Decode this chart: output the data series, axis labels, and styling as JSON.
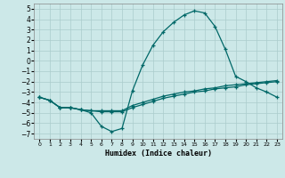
{
  "xlabel": "Humidex (Indice chaleur)",
  "bg_color": "#cce8e8",
  "grid_color": "#aacccc",
  "line_color": "#006868",
  "xlim": [
    -0.5,
    23.5
  ],
  "ylim": [
    -7.5,
    5.5
  ],
  "xticks": [
    0,
    1,
    2,
    3,
    4,
    5,
    6,
    7,
    8,
    9,
    10,
    11,
    12,
    13,
    14,
    15,
    16,
    17,
    18,
    19,
    20,
    21,
    22,
    23
  ],
  "yticks": [
    -7,
    -6,
    -5,
    -4,
    -3,
    -2,
    -1,
    0,
    1,
    2,
    3,
    4,
    5
  ],
  "line1_x": [
    0,
    1,
    2,
    3,
    4,
    5,
    6,
    7,
    8,
    9,
    10,
    11,
    12,
    13,
    14,
    15,
    16,
    17,
    18,
    19,
    20,
    21,
    22,
    23
  ],
  "line1_y": [
    -3.5,
    -3.8,
    -4.5,
    -4.5,
    -4.7,
    -5.0,
    -6.3,
    -6.8,
    -6.5,
    -2.9,
    -0.4,
    1.5,
    2.8,
    3.7,
    4.4,
    4.8,
    4.6,
    3.3,
    1.1,
    -1.5,
    -2.0,
    -2.6,
    -3.0,
    -3.5
  ],
  "line2_x": [
    0,
    1,
    2,
    3,
    4,
    5,
    6,
    7,
    8,
    9,
    10,
    11,
    12,
    13,
    14,
    15,
    16,
    17,
    18,
    19,
    20,
    21,
    22,
    23
  ],
  "line2_y": [
    -3.5,
    -3.8,
    -4.5,
    -4.5,
    -4.7,
    -4.8,
    -4.9,
    -4.9,
    -4.9,
    -4.5,
    -4.2,
    -3.9,
    -3.6,
    -3.4,
    -3.2,
    -3.0,
    -2.9,
    -2.7,
    -2.6,
    -2.5,
    -2.3,
    -2.2,
    -2.1,
    -2.0
  ],
  "line3_x": [
    0,
    1,
    2,
    3,
    4,
    5,
    6,
    7,
    8,
    9,
    10,
    11,
    12,
    13,
    14,
    15,
    16,
    17,
    18,
    19,
    20,
    21,
    22,
    23
  ],
  "line3_y": [
    -3.5,
    -3.8,
    -4.5,
    -4.5,
    -4.7,
    -4.8,
    -4.8,
    -4.8,
    -4.8,
    -4.3,
    -4.0,
    -3.7,
    -3.4,
    -3.2,
    -3.0,
    -2.9,
    -2.7,
    -2.6,
    -2.4,
    -2.3,
    -2.2,
    -2.1,
    -2.0,
    -1.9
  ]
}
